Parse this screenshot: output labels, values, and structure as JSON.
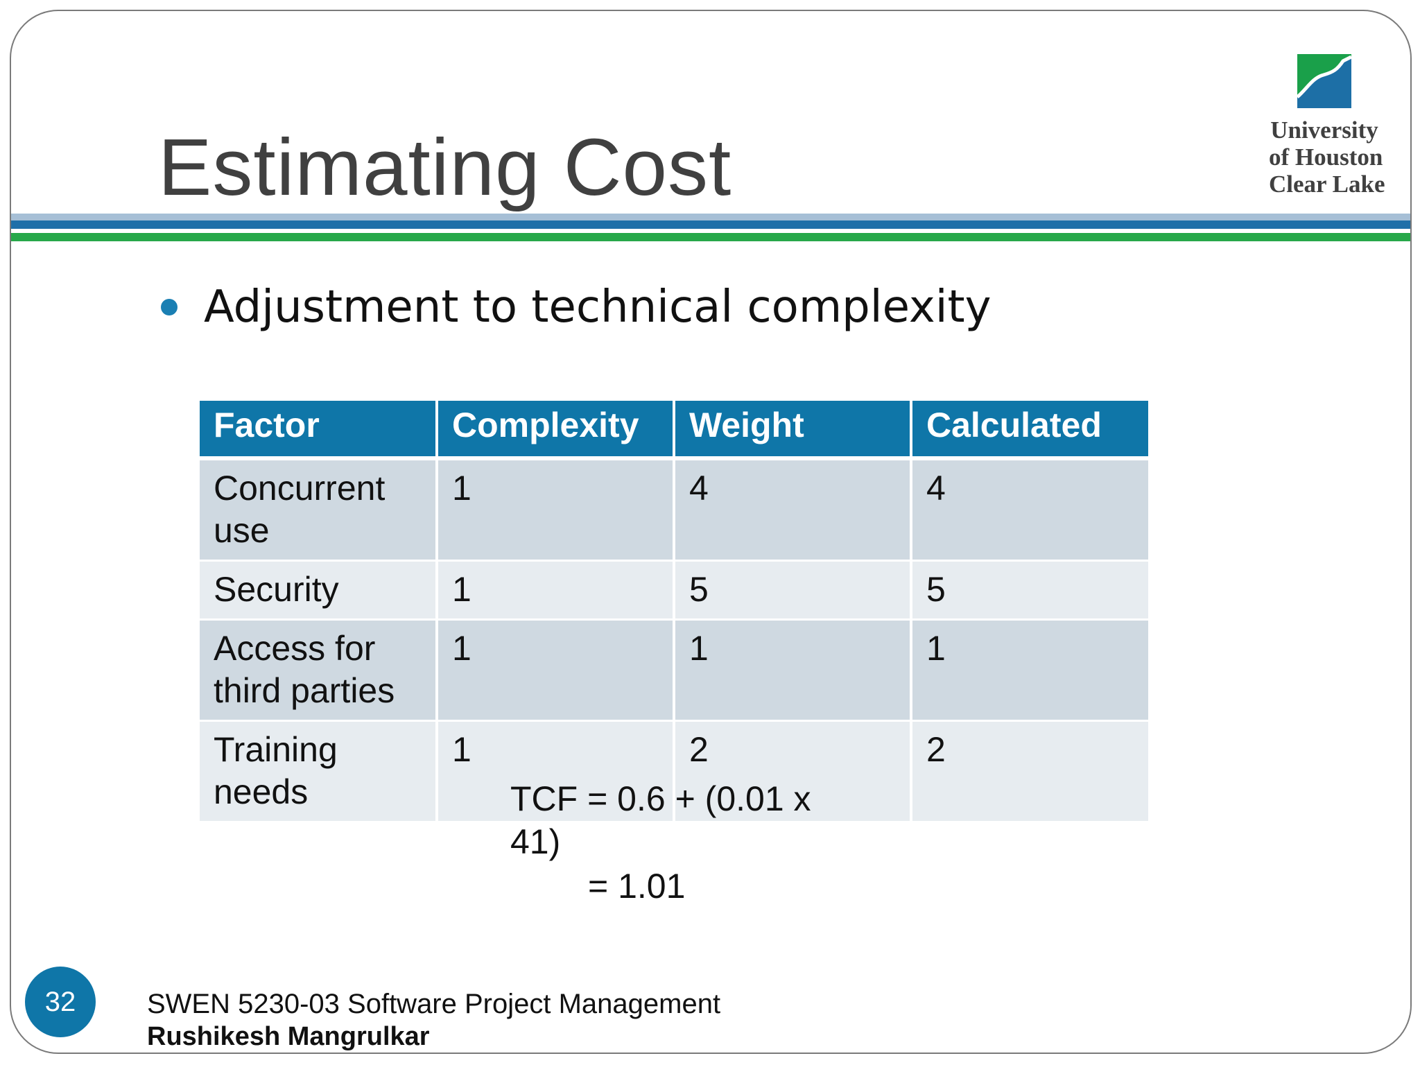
{
  "slide": {
    "title": "Estimating Cost",
    "page_number": "32"
  },
  "logo": {
    "lines": [
      "University",
      "of Houston",
      "Clear Lake"
    ],
    "colors": {
      "green": "#1aa04a",
      "blue": "#1d6fa6"
    }
  },
  "bullets": [
    {
      "text": "Adjustment to technical complexity"
    }
  ],
  "table": {
    "headers": [
      "Factor",
      "Complexity",
      "Weight",
      "Calculated"
    ],
    "rows": [
      {
        "factor_lines": [
          "Concurrent",
          "use"
        ],
        "complexity": "1",
        "weight": "4",
        "calculated": "4"
      },
      {
        "factor_lines": [
          "Security"
        ],
        "complexity": "1",
        "weight": "5",
        "calculated": "5"
      },
      {
        "factor_lines": [
          "Access for",
          "third parties"
        ],
        "complexity": "1",
        "weight": "1",
        "calculated": "1"
      },
      {
        "factor_lines": [
          "Training",
          "needs"
        ],
        "complexity": "1",
        "weight": "2",
        "calculated": "2"
      }
    ]
  },
  "formula": {
    "lines": [
      "TCF = 0.6 + (0.01 x",
      "41)",
      "=  1.01"
    ]
  },
  "footer": {
    "course": "SWEN 5230-03 Software Project Management",
    "author": "Rushikesh Mangrulkar"
  },
  "colors": {
    "header_fill": "#0f76a8",
    "row_dark": "#cfd9e1",
    "row_light": "#e7ecf0",
    "title_text": "#404040",
    "bullet_dot": "#1a7fb3",
    "band_light": "#a6bfd6",
    "band_blue": "#1f6fa8",
    "band_green": "#27a84a"
  }
}
